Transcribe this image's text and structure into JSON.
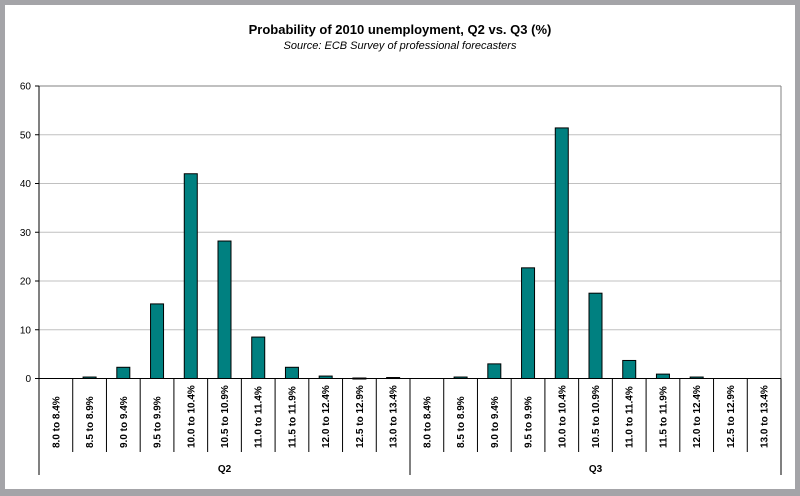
{
  "chart_data": {
    "type": "bar",
    "title": "Probability of 2010 unemployment, Q2 vs. Q3 (%)",
    "subtitle": "Source: ECB Survey of professional forecasters",
    "xlabel": "",
    "ylabel": "",
    "ylim": [
      0,
      60
    ],
    "yticks": [
      "0",
      "10",
      "20",
      "30",
      "40",
      "50",
      "60"
    ],
    "grid": true,
    "bar_color": "#008080",
    "groups": [
      {
        "name": "Q2",
        "categories": [
          "8.0 to 8.4%",
          "8.5 to 8.9%",
          "9.0 to 9.4%",
          "9.5 to 9.9%",
          "10.0 to 10.4%",
          "10.5 to 10.9%",
          "11.0 to 11.4%",
          "11.5 to 11.9%",
          "12.0 to 12.4%",
          "12.5 to 12.9%",
          "13.0 to 13.4%"
        ],
        "values": [
          0,
          0.3,
          2.3,
          15.3,
          42.0,
          28.2,
          8.5,
          2.3,
          0.5,
          0.1,
          0.2
        ]
      },
      {
        "name": "Q3",
        "categories": [
          "8.0 to 8.4%",
          "8.5 to 8.9%",
          "9.0 to 9.4%",
          "9.5 to 9.9%",
          "10.0 to 10.4%",
          "10.5 to 10.9%",
          "11.0 to 11.4%",
          "11.5 to 11.9%",
          "12.0 to 12.4%",
          "12.5 to 12.9%",
          "13.0 to 13.4%"
        ],
        "values": [
          0,
          0.3,
          3.0,
          22.7,
          51.4,
          17.5,
          3.7,
          0.9,
          0.3,
          0,
          0
        ]
      }
    ]
  }
}
